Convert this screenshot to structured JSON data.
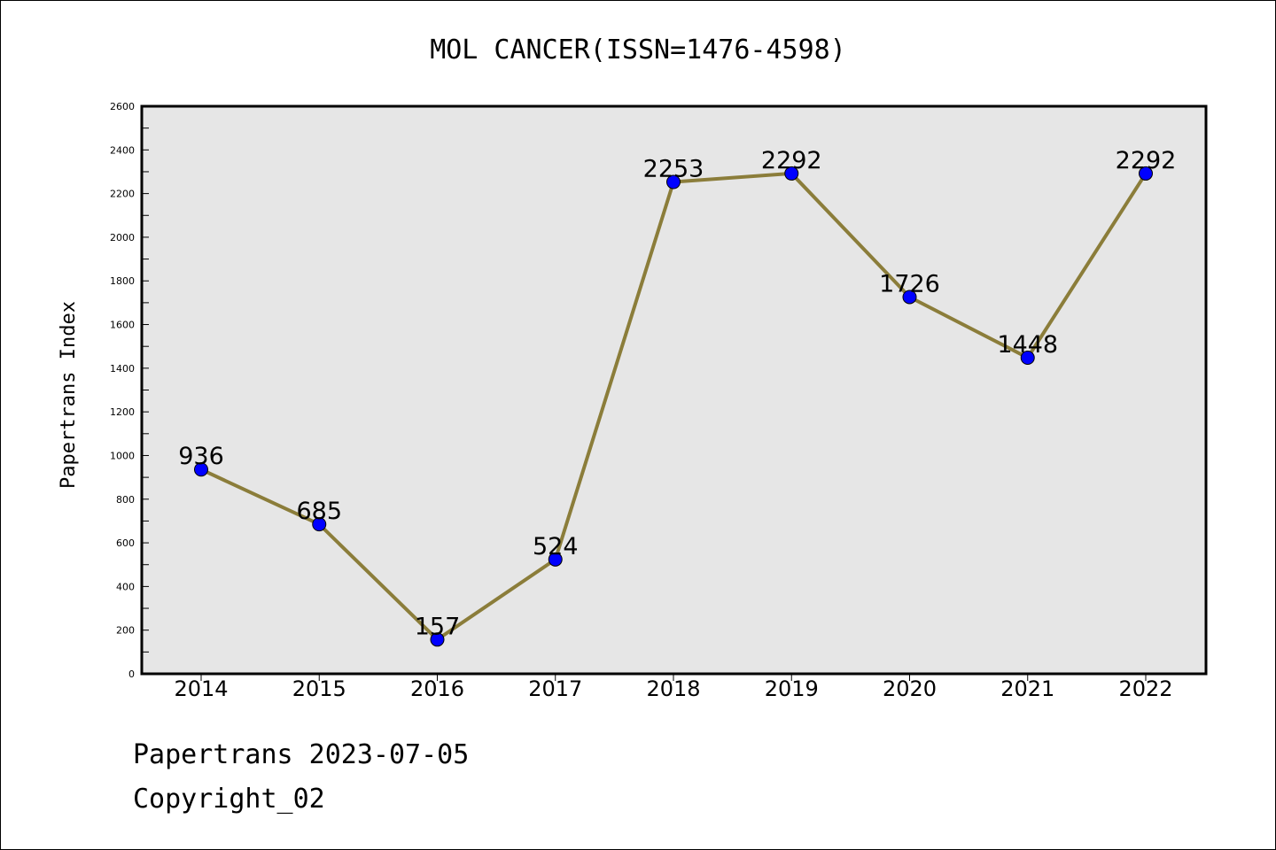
{
  "chart_data": {
    "type": "line",
    "title": "MOL CANCER(ISSN=1476-4598)",
    "xlabel": "",
    "ylabel": "Papertrans Index",
    "categories": [
      "2014",
      "2015",
      "2016",
      "2017",
      "2018",
      "2019",
      "2020",
      "2021",
      "2022"
    ],
    "series": [
      {
        "values": [
          936,
          685,
          157,
          524,
          2253,
          2292,
          1726,
          1448,
          2292
        ]
      }
    ],
    "ylim": [
      0,
      2600
    ],
    "yticks": [
      0,
      200,
      400,
      600,
      800,
      1000,
      1200,
      1400,
      1600,
      1800,
      2000,
      2200,
      2400,
      2600
    ],
    "grid": false,
    "data_labels": true,
    "colors": {
      "line": "#8B7D3A",
      "marker": "#0000FF",
      "plot_background": "#E6E6E6"
    }
  },
  "footer": {
    "source": "Papertrans 2023-07-05",
    "copyright": "Copyright_02"
  }
}
